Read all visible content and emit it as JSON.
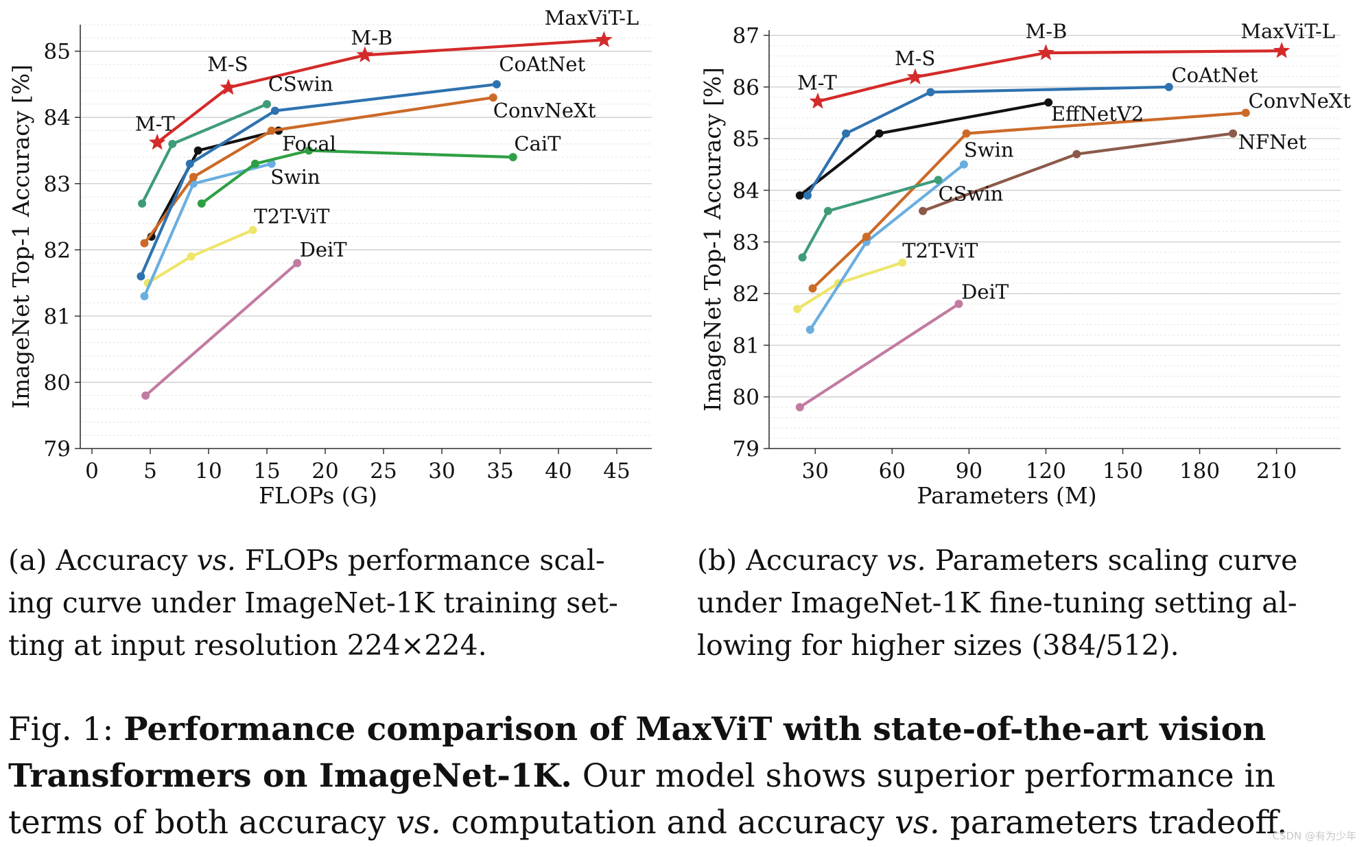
{
  "chart_data": [
    {
      "type": "line",
      "id": "flops",
      "xlabel": "FLOPs (G)",
      "ylabel": "ImageNet Top-1 Accuracy [%]",
      "xlim": [
        -1,
        48
      ],
      "ylim": [
        79,
        85.4
      ],
      "xticks": [
        0,
        5,
        10,
        15,
        20,
        25,
        30,
        35,
        40,
        45
      ],
      "yticks": [
        79,
        80,
        81,
        82,
        83,
        84,
        85
      ],
      "grid": true,
      "series": [
        {
          "name": "DeiT",
          "color": "#c27ba0",
          "marker": "circle",
          "x": [
            4.6,
            17.6
          ],
          "y": [
            79.8,
            81.8
          ],
          "label": "DeiT"
        },
        {
          "name": "T2T-ViT",
          "color": "#eee56b",
          "marker": "circle",
          "x": [
            4.8,
            8.5,
            13.8
          ],
          "y": [
            81.5,
            81.9,
            82.3
          ],
          "label": "T2T-ViT"
        },
        {
          "name": "Swin",
          "color": "#6aaee0",
          "marker": "circle",
          "x": [
            4.5,
            8.7,
            15.4
          ],
          "y": [
            81.3,
            83.0,
            83.3
          ],
          "label": "Swin"
        },
        {
          "name": "Focal",
          "color": "#111111",
          "marker": "circle",
          "x": [
            5.1,
            9.1,
            16.0
          ],
          "y": [
            82.2,
            83.5,
            83.8
          ],
          "label": "Focal"
        },
        {
          "name": "ConvNeXt",
          "color": "#cc6a28",
          "marker": "circle",
          "x": [
            4.5,
            8.7,
            15.4,
            34.4
          ],
          "y": [
            82.1,
            83.1,
            83.8,
            84.3
          ],
          "label": "ConvNeXt"
        },
        {
          "name": "CoAtNet",
          "color": "#2e72b0",
          "marker": "circle",
          "x": [
            4.2,
            8.4,
            15.7,
            34.7
          ],
          "y": [
            81.6,
            83.3,
            84.1,
            84.5
          ],
          "label": "CoAtNet"
        },
        {
          "name": "CSwin",
          "color": "#3e9c78",
          "marker": "circle",
          "x": [
            4.3,
            6.9,
            15.0
          ],
          "y": [
            82.7,
            83.6,
            84.2
          ],
          "label": "CSwin"
        },
        {
          "name": "CaiT",
          "color": "#2ea043",
          "marker": "circle",
          "x": [
            9.4,
            14.0,
            18.6,
            36.1
          ],
          "y": [
            82.7,
            83.3,
            83.5,
            83.4
          ],
          "label": "CaiT"
        },
        {
          "name": "MaxViT",
          "color": "#d42a2a",
          "marker": "star",
          "x": [
            5.6,
            11.7,
            23.4,
            43.9
          ],
          "y": [
            83.62,
            84.45,
            84.94,
            85.17
          ],
          "label": "MaxViT"
        }
      ],
      "annotations": [
        {
          "text": "MaxViT-L",
          "x": 38.8,
          "y": 85.4
        },
        {
          "text": "M-B",
          "x": 22.2,
          "y": 85.1
        },
        {
          "text": "M-S",
          "x": 9.9,
          "y": 84.7
        },
        {
          "text": "M-T",
          "x": 3.7,
          "y": 83.8
        },
        {
          "text": "CoAtNet",
          "x": 34.9,
          "y": 84.7
        },
        {
          "text": "CSwin",
          "x": 15.1,
          "y": 84.4
        },
        {
          "text": "ConvNeXt",
          "x": 34.4,
          "y": 84.0
        },
        {
          "text": "Focal",
          "x": 16.3,
          "y": 83.5
        },
        {
          "text": "CaiT",
          "x": 36.2,
          "y": 83.5
        },
        {
          "text": "Swin",
          "x": 15.3,
          "y": 83.0
        },
        {
          "text": "T2T-ViT",
          "x": 13.9,
          "y": 82.4
        },
        {
          "text": "DeiT",
          "x": 17.8,
          "y": 81.9
        }
      ]
    },
    {
      "type": "line",
      "id": "params",
      "xlabel": "Parameters (M)",
      "ylabel": "ImageNet Top-1 Accuracy [%]",
      "xlim": [
        12,
        235
      ],
      "ylim": [
        79,
        87.1
      ],
      "xticks": [
        30,
        60,
        90,
        120,
        150,
        180,
        210
      ],
      "yticks": [
        79,
        80,
        81,
        82,
        83,
        84,
        85,
        86,
        87
      ],
      "grid": true,
      "series": [
        {
          "name": "DeiT",
          "color": "#c27ba0",
          "marker": "circle",
          "x": [
            24,
            86
          ],
          "y": [
            79.8,
            81.8
          ],
          "label": "DeiT"
        },
        {
          "name": "T2T-ViT",
          "color": "#eee56b",
          "marker": "circle",
          "x": [
            23,
            39,
            64
          ],
          "y": [
            81.7,
            82.2,
            82.6
          ],
          "label": "T2T-ViT"
        },
        {
          "name": "Swin",
          "color": "#6aaee0",
          "marker": "circle",
          "x": [
            28,
            50,
            88
          ],
          "y": [
            81.3,
            83.0,
            84.5
          ],
          "label": "Swin"
        },
        {
          "name": "ConvNeXt",
          "color": "#cc6a28",
          "marker": "circle",
          "x": [
            29,
            50,
            89,
            198
          ],
          "y": [
            82.1,
            83.1,
            85.1,
            85.5
          ],
          "label": "ConvNeXt"
        },
        {
          "name": "CSwin",
          "color": "#3e9c78",
          "marker": "circle",
          "x": [
            25,
            35,
            78
          ],
          "y": [
            82.7,
            83.6,
            84.2
          ],
          "label": "CSwin"
        },
        {
          "name": "NFNet",
          "color": "#8b5a4a",
          "marker": "circle",
          "x": [
            72,
            132,
            193
          ],
          "y": [
            83.6,
            84.7,
            85.1
          ],
          "label": "NFNet"
        },
        {
          "name": "EffNetV2",
          "color": "#111111",
          "marker": "circle",
          "x": [
            24,
            55,
            121
          ],
          "y": [
            83.9,
            85.1,
            85.7
          ],
          "label": "EffNetV2"
        },
        {
          "name": "CoAtNet",
          "color": "#2e72b0",
          "marker": "circle",
          "x": [
            27,
            42,
            75,
            168
          ],
          "y": [
            83.9,
            85.1,
            85.9,
            86.0
          ],
          "label": "CoAtNet"
        },
        {
          "name": "MaxViT",
          "color": "#d42a2a",
          "marker": "star",
          "x": [
            31,
            69,
            120,
            212
          ],
          "y": [
            85.72,
            86.19,
            86.66,
            86.7
          ],
          "label": "MaxViT"
        }
      ],
      "annotations": [
        {
          "text": "MaxViT-L",
          "x": 196,
          "y": 86.95
        },
        {
          "text": "M-B",
          "x": 112,
          "y": 86.95
        },
        {
          "text": "M-S",
          "x": 61,
          "y": 86.42
        },
        {
          "text": "M-T",
          "x": 23,
          "y": 85.95
        },
        {
          "text": "CoAtNet",
          "x": 169,
          "y": 86.1
        },
        {
          "text": "ConvNeXt",
          "x": 199,
          "y": 85.6
        },
        {
          "text": "EffNetV2",
          "x": 122,
          "y": 85.35
        },
        {
          "text": "NFNet",
          "x": 195,
          "y": 84.8
        },
        {
          "text": "Swin",
          "x": 88,
          "y": 84.65
        },
        {
          "text": "CSwin",
          "x": 78,
          "y": 83.8
        },
        {
          "text": "T2T-ViT",
          "x": 64,
          "y": 82.7
        },
        {
          "text": "DeiT",
          "x": 87,
          "y": 81.9
        }
      ]
    }
  ],
  "captions": {
    "a": "(a) Accuracy vs. FLOPs performance scal-ing curve under ImageNet-1K training set-ting at input resolution 224×224.",
    "a_parts": [
      "(a) Accuracy ",
      "vs.",
      " FLOPs performance scal-",
      "ing curve under ImageNet-1K training set-",
      "ting at input resolution 224×224."
    ],
    "b_parts": [
      "(b) Accuracy ",
      "vs.",
      " Parameters scaling curve",
      "under ImageNet-1K fine-tuning setting al-",
      "lowing for higher sizes (384/512)."
    ],
    "fig_label": "Fig. 1: ",
    "fig_bold": "Performance comparison of MaxViT with state-of-the-art vision Transformers on ImageNet-1K.",
    "fig_rest_1": " Our model shows superior performance in terms of both accuracy ",
    "fig_vs_1": "vs.",
    "fig_rest_2": " computation and accuracy ",
    "fig_vs_2": "vs.",
    "fig_rest_3": " parameters tradeoff."
  },
  "watermark": "CSDN @有为少年"
}
